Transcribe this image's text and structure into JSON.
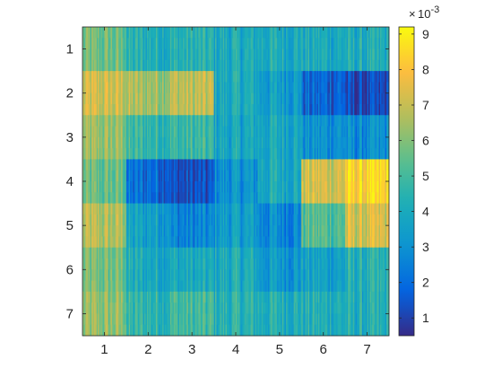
{
  "chart_data": {
    "type": "heatmap",
    "title": "",
    "xlabel": "",
    "ylabel": "",
    "x_tick_labels": [
      "1",
      "2",
      "3",
      "4",
      "5",
      "6",
      "7"
    ],
    "y_tick_labels": [
      "1",
      "2",
      "3",
      "4",
      "5",
      "6",
      "7"
    ],
    "xlim": [
      0.5,
      7.5
    ],
    "ylim": [
      0.5,
      7.5
    ],
    "y_direction": "reverse",
    "colormap": "parula",
    "colorbar": {
      "location": "right",
      "range": [
        0.5,
        9.2
      ],
      "ticks": [
        "1",
        "2",
        "3",
        "4",
        "5",
        "6",
        "7",
        "8",
        "9"
      ],
      "tick_values": [
        1,
        2,
        3,
        4,
        5,
        6,
        7,
        8,
        9
      ],
      "exponent_base": "10",
      "exponent_power": "-3"
    },
    "block_means_rows_are_y": [
      [
        5.6,
        4.3,
        4.3,
        4.0,
        4.1,
        4.0,
        4.0
      ],
      [
        7.0,
        6.5,
        6.8,
        4.0,
        3.5,
        1.8,
        1.0
      ],
      [
        6.2,
        4.7,
        4.7,
        3.8,
        3.9,
        3.0,
        2.8
      ],
      [
        5.5,
        2.0,
        1.2,
        3.0,
        4.0,
        7.2,
        8.2
      ],
      [
        6.6,
        3.6,
        2.5,
        3.4,
        2.8,
        5.3,
        7.1
      ],
      [
        5.7,
        4.0,
        3.9,
        4.0,
        3.3,
        3.6,
        4.2
      ],
      [
        6.1,
        4.6,
        4.9,
        4.4,
        4.3,
        4.2,
        4.1
      ]
    ],
    "grid": false
  }
}
